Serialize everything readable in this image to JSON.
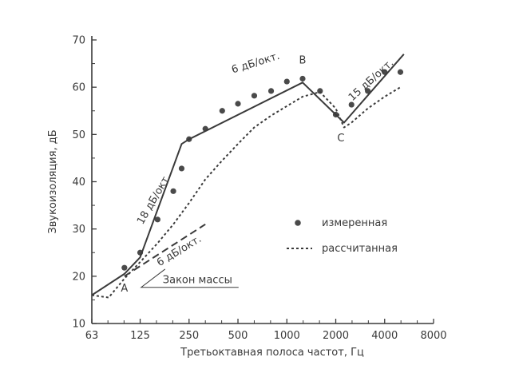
{
  "chart_data": {
    "type": "line",
    "title": "",
    "xlabel": "Третьоктавная полоса частот, Гц",
    "ylabel": "Звукоизоляция, дБ",
    "x_scale": "log",
    "xlim": [
      63,
      8000
    ],
    "ylim": [
      10,
      70
    ],
    "x_ticks": [
      63,
      125,
      250,
      500,
      1000,
      2000,
      4000,
      8000
    ],
    "x_tick_labels": [
      "63",
      "125",
      "250",
      "500",
      "1000",
      "2000",
      "4000",
      "8000"
    ],
    "y_ticks": [
      10,
      20,
      30,
      40,
      50,
      60,
      70
    ],
    "y_tick_labels": [
      "10",
      "20",
      "30",
      "40",
      "50",
      "60",
      "70"
    ],
    "grid": false,
    "legend_position": "right",
    "series": [
      {
        "name": "измеренная",
        "kind": "scatter",
        "x": [
          100,
          125,
          160,
          200,
          225,
          250,
          315,
          400,
          500,
          630,
          800,
          1000,
          1250,
          1600,
          2000,
          2500,
          3150,
          4000,
          5000
        ],
        "y": [
          21.8,
          25,
          32,
          38,
          42.8,
          49,
          51.2,
          55,
          56.5,
          58.2,
          59.2,
          61.2,
          61.8,
          59.2,
          54.2,
          56.3,
          59.2,
          63.2,
          63.2
        ]
      },
      {
        "name": "рассчитанная",
        "kind": "dotted-line",
        "x": [
          63,
          80,
          100,
          125,
          160,
          200,
          250,
          315,
          400,
          500,
          630,
          800,
          1000,
          1250,
          1600,
          2000,
          2250,
          2500,
          3150,
          4000,
          5000
        ],
        "y": [
          16,
          15.5,
          19.5,
          23,
          27,
          31,
          35.5,
          40.5,
          44.5,
          48,
          51.5,
          54,
          56,
          58,
          59,
          55.5,
          51.5,
          52.5,
          55.5,
          58,
          60
        ]
      },
      {
        "name": "",
        "kind": "solid-line",
        "x": [
          63,
          100,
          125,
          225,
          250,
          1250,
          2250,
          5250
        ],
        "y": [
          16,
          20.5,
          24,
          48,
          49,
          61,
          52.5,
          67
        ]
      },
      {
        "name": "",
        "kind": "dashed-line",
        "x": [
          100,
          315
        ],
        "y": [
          20,
          31
        ]
      }
    ],
    "annotations": [
      {
        "text": "A",
        "x": 100,
        "y": 16.8
      },
      {
        "text": "B",
        "x": 1250,
        "y": 65
      },
      {
        "text": "C",
        "x": 2150,
        "y": 48.5
      },
      {
        "text": "18 дБ/окт.",
        "x": 158,
        "y": 36,
        "angle": -60
      },
      {
        "text": "6 дБ/окт.",
        "x": 650,
        "y": 64.5,
        "angle": -17
      },
      {
        "text": "15 дБ/окт.",
        "x": 3400,
        "y": 61,
        "angle": -42
      },
      {
        "text": "6 дБ/окт.",
        "x": 222,
        "y": 24.8,
        "angle": -31
      },
      {
        "text": "Закон массы",
        "x": 280,
        "y": 18.5
      }
    ],
    "legend": [
      {
        "label": "измеренная",
        "marker": "dot"
      },
      {
        "label": "рассчитанная",
        "marker": "dotted-line"
      }
    ],
    "colors": {
      "line": "#3a3a3a",
      "marker": "#4a4a4a",
      "axis": "#3a3a3a"
    }
  }
}
